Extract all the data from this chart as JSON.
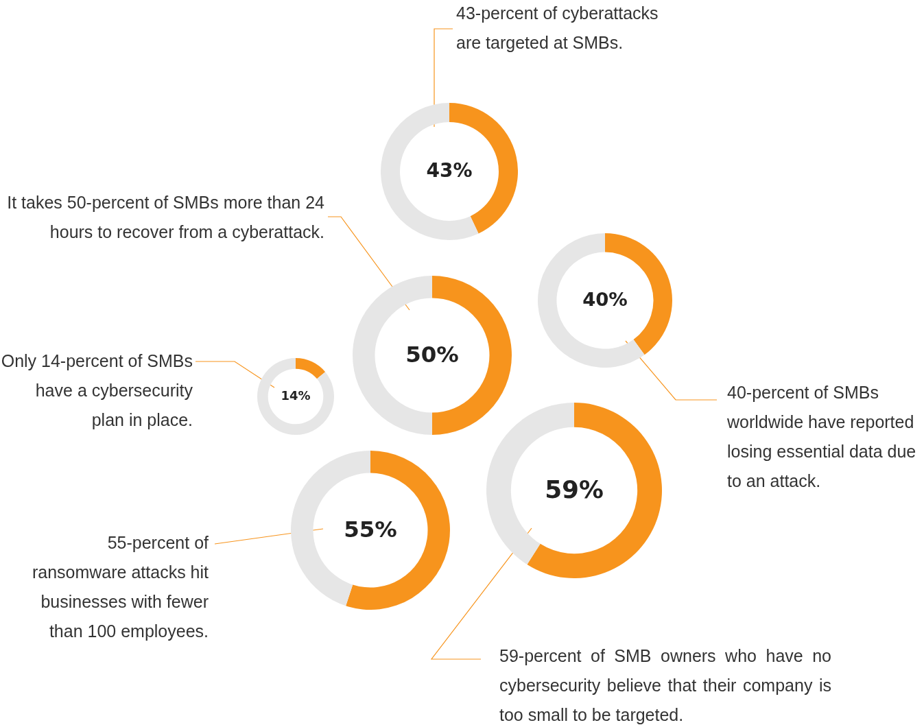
{
  "chart_data": [
    {
      "type": "donut",
      "categories": [
        null,
        null
      ],
      "values": [
        43,
        57
      ],
      "colors": [
        "#f7941d",
        "#e6e6e6"
      ],
      "value_labels": [
        "43%",
        null
      ],
      "annotations": [
        "43-percent of cyberattacks are targeted at SMBs."
      ]
    },
    {
      "type": "donut",
      "categories": [
        null,
        null
      ],
      "values": [
        40,
        60
      ],
      "colors": [
        "#f7941d",
        "#e6e6e6"
      ],
      "value_labels": [
        "40%",
        null
      ],
      "annotations": [
        "40-percent of SMBs worldwide have reported losing essential data due to an attack."
      ]
    },
    {
      "type": "donut",
      "categories": [
        null,
        null
      ],
      "values": [
        50,
        50
      ],
      "colors": [
        "#f7941d",
        "#e6e6e6"
      ],
      "value_labels": [
        "50%",
        null
      ],
      "annotations": [
        "It takes 50-percent of SMBs more than 24 hours to recover from a cyberattack."
      ]
    },
    {
      "type": "donut",
      "categories": [
        null,
        null
      ],
      "values": [
        14,
        86
      ],
      "colors": [
        "#f7941d",
        "#e6e6e6"
      ],
      "value_labels": [
        "14%",
        null
      ],
      "annotations": [
        "Only 14-percent of SMBs have a cybersecurity plan in place."
      ]
    },
    {
      "type": "donut",
      "categories": [
        null,
        null
      ],
      "values": [
        59,
        41
      ],
      "colors": [
        "#f7941d",
        "#e6e6e6"
      ],
      "value_labels": [
        "59%",
        null
      ],
      "annotations": [
        "59-percent of SMB owners who have no cybersecurity believe that their company is too small to be targeted."
      ]
    },
    {
      "type": "donut",
      "categories": [
        null,
        null
      ],
      "values": [
        55,
        45
      ],
      "colors": [
        "#f7941d",
        "#e6e6e6"
      ],
      "value_labels": [
        "55%",
        null
      ],
      "annotations": [
        "55-percent of ransomware attacks hit businesses with fewer than 100 employees."
      ]
    }
  ]
}
